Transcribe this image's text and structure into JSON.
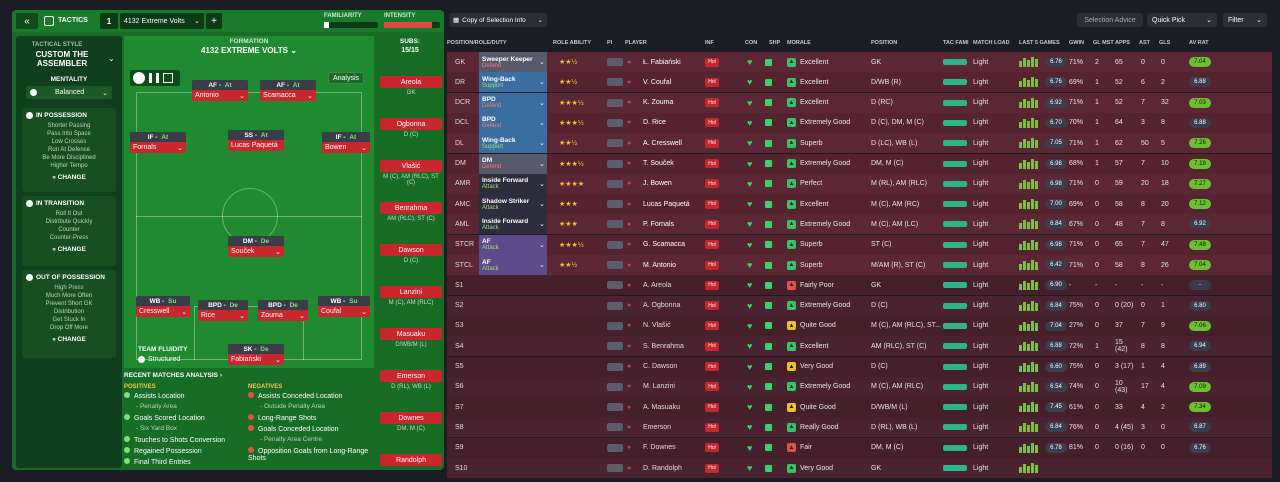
{
  "left": {
    "topbar": {
      "section": "TACTICS",
      "slot": "1",
      "tactic": "4132 Extreme Volts",
      "familiarity": "FAMILIARITY",
      "intensity": "INTENSITY"
    },
    "style": {
      "label": "TACTICAL STYLE",
      "name": "CUSTOM THE ASSEMBLER",
      "mentality_label": "MENTALITY",
      "mentality": "Balanced"
    },
    "sections": [
      {
        "title": "IN POSSESSION",
        "lines": [
          "Shorter Passing",
          "Pass Into Space",
          "Low Crosses",
          "Run At Defence",
          "Be More Disciplined",
          "Higher Tempo"
        ],
        "change": "CHANGE"
      },
      {
        "title": "IN TRANSITION",
        "lines": [
          "Roll It Out",
          "Distribute Quickly",
          "Counter",
          "Counter-Press"
        ],
        "change": "CHANGE"
      },
      {
        "title": "OUT OF POSSESSION",
        "lines": [
          "High Press",
          "Much More Often",
          "Prevent Short GK",
          "Distribution",
          "Get Stuck In",
          "Drop Off More"
        ],
        "change": "CHANGE"
      }
    ],
    "formation": {
      "label": "FORMATION",
      "name": "4132 EXTREME VOLTS",
      "analysis": "Analysis",
      "fluidity_label": "TEAM FLUIDITY",
      "fluidity": "Structured"
    },
    "players": [
      {
        "role": "AF",
        "duty": "At",
        "name": "Antonio"
      },
      {
        "role": "AF",
        "duty": "At",
        "name": "Scamacca"
      },
      {
        "role": "IF",
        "duty": "At",
        "name": "Fornals"
      },
      {
        "role": "SS",
        "duty": "At",
        "name": "Lucas Paquetá"
      },
      {
        "role": "IF",
        "duty": "At",
        "name": "Bowen"
      },
      {
        "role": "DM",
        "duty": "De",
        "name": "Souček"
      },
      {
        "role": "WB",
        "duty": "Su",
        "name": "Cresswell"
      },
      {
        "role": "BPD",
        "duty": "De",
        "name": "Rice"
      },
      {
        "role": "BPD",
        "duty": "De",
        "name": "Zouma"
      },
      {
        "role": "WB",
        "duty": "Su",
        "name": "Coufal"
      },
      {
        "role": "SK",
        "duty": "De",
        "name": "Fabiański"
      }
    ],
    "subs": {
      "label": "SUBS:",
      "count": "15/15",
      "list": [
        {
          "name": "Areola",
          "pos": "GK"
        },
        {
          "name": "Ogbonna",
          "pos": "D (C)"
        },
        {
          "name": "Vlašić",
          "pos": "M (C), AM (RLC), ST (C)"
        },
        {
          "name": "Benrahma",
          "pos": "AM (RLC), ST (C)"
        },
        {
          "name": "Dawson",
          "pos": "D (C)"
        },
        {
          "name": "Lanzini",
          "pos": "M (C), AM (RLC)"
        },
        {
          "name": "Masuaku",
          "pos": "D/WB/M (L)"
        },
        {
          "name": "Emerson",
          "pos": "D (RL), WB (L)"
        },
        {
          "name": "Downes",
          "pos": "DM, M (C)"
        },
        {
          "name": "Randolph",
          "pos": ""
        }
      ]
    },
    "analysis": {
      "title": "RECENT MATCHES ANALYSIS",
      "pos_label": "POSITIVES",
      "neg_label": "NEGATIVES",
      "positives": [
        {
          "t": "Assists Location",
          "s": "- Penalty Area"
        },
        {
          "t": "Goals Scored Location",
          "s": "- Six Yard Box"
        },
        {
          "t": "Touches to Shots Conversion",
          "s": ""
        },
        {
          "t": "Regained Possession",
          "s": ""
        },
        {
          "t": "Final Third Entries",
          "s": ""
        }
      ],
      "negatives": [
        {
          "t": "Assists Conceded Location",
          "s": "- Outside Penalty Area"
        },
        {
          "t": "Long-Range Shots",
          "s": ""
        },
        {
          "t": "Goals Conceded Location",
          "s": "- Penalty Area Centre"
        },
        {
          "t": "Opposition Goals from Long-Range Shots",
          "s": ""
        }
      ]
    }
  },
  "right": {
    "view": "Copy of Selection Info",
    "buttons": {
      "advice": "Selection Advice",
      "quick": "Quick Pick",
      "filter": "Filter"
    },
    "headers": [
      "POSITION/ROLE/DUTY",
      "ROLE ABILITY",
      "PI",
      "PLAYER",
      "INF",
      "CON",
      "SHP",
      "MORALE",
      "POSITION",
      "TAC FAMI",
      "MATCH LOAD",
      "LAST 5 GAMES",
      "GWIN",
      "GL MST",
      "APPS",
      "AST",
      "GLS",
      "AV RAT"
    ],
    "rows": [
      {
        "pos": "GK",
        "role": "Sweeper Keeper",
        "duty": "Defend",
        "stars": "★★½",
        "player": "Ł. Fabiański",
        "morale": "Excellent",
        "mc": "#35c46a",
        "position": "GK",
        "load": "Light",
        "l5": "6.76",
        "gwin": "71%",
        "glm": "2",
        "apps": "65",
        "ast": "0",
        "gls": "0",
        "av": "7.04",
        "g": true
      },
      {
        "pos": "DR",
        "role": "Wing-Back",
        "duty": "Support",
        "stars": "★★½",
        "player": "V. Coufal",
        "morale": "Excellent",
        "mc": "#35c46a",
        "position": "D/WB (R)",
        "load": "Light",
        "l5": "6.76",
        "gwin": "69%",
        "glm": "1",
        "apps": "52",
        "ast": "6",
        "gls": "2",
        "av": "6.88",
        "g": false
      },
      {
        "pos": "DCR",
        "role": "BPD",
        "duty": "Defend",
        "stars": "★★★½",
        "player": "K. Zouma",
        "morale": "Excellent",
        "mc": "#35c46a",
        "position": "D (RC)",
        "load": "Light",
        "l5": "6.92",
        "gwin": "71%",
        "glm": "1",
        "apps": "52",
        "ast": "7",
        "gls": "32",
        "av": "7.03",
        "g": true
      },
      {
        "pos": "DCL",
        "role": "BPD",
        "duty": "Defend",
        "stars": "★★★½",
        "player": "D. Rice",
        "morale": "Extremely Good",
        "mc": "#35c46a",
        "position": "D (C), DM, M (C)",
        "load": "Light",
        "l5": "6.70",
        "gwin": "70%",
        "glm": "1",
        "apps": "64",
        "ast": "3",
        "gls": "8",
        "av": "6.88",
        "g": false
      },
      {
        "pos": "DL",
        "role": "Wing-Back",
        "duty": "Support",
        "stars": "★★½",
        "player": "A. Cresswell",
        "morale": "Superb",
        "mc": "#35c46a",
        "position": "D (LC), WB (L)",
        "load": "Light",
        "l5": "7.05",
        "gwin": "71%",
        "glm": "1",
        "apps": "62",
        "ast": "50",
        "gls": "5",
        "av": "7.26",
        "g": true
      },
      {
        "pos": "DM",
        "role": "DM",
        "duty": "Defend",
        "stars": "★★★½",
        "player": "T. Souček",
        "morale": "Extremely Good",
        "mc": "#35c46a",
        "position": "DM, M (C)",
        "load": "Light",
        "l5": "6.98",
        "gwin": "68%",
        "glm": "1",
        "apps": "57",
        "ast": "7",
        "gls": "10",
        "av": "7.19",
        "g": true
      },
      {
        "pos": "AMR",
        "role": "Inside Forward",
        "duty": "Attack",
        "stars": "★★★★",
        "player": "J. Bowen",
        "morale": "Perfect",
        "mc": "#35c46a",
        "position": "M (RL), AM (RLC)",
        "load": "Light",
        "l5": "6.98",
        "gwin": "71%",
        "glm": "0",
        "apps": "59",
        "ast": "20",
        "gls": "18",
        "av": "7.27",
        "g": true
      },
      {
        "pos": "AMC",
        "role": "Shadow Striker",
        "duty": "Attack",
        "stars": "★★★",
        "player": "Lucas Paquetá",
        "morale": "Excellent",
        "mc": "#35c46a",
        "position": "M (C), AM (RC)",
        "load": "Light",
        "l5": "7.00",
        "gwin": "69%",
        "glm": "0",
        "apps": "58",
        "ast": "8",
        "gls": "20",
        "av": "7.12",
        "g": true
      },
      {
        "pos": "AML",
        "role": "Inside Forward",
        "duty": "Attack",
        "stars": "★★★",
        "player": "P. Fornals",
        "morale": "Extremely Good",
        "mc": "#35c46a",
        "position": "M (C), AM (LC)",
        "load": "Light",
        "l5": "6.84",
        "gwin": "67%",
        "glm": "0",
        "apps": "48",
        "ast": "7",
        "gls": "8",
        "av": "6.92",
        "g": false
      },
      {
        "pos": "STCR",
        "role": "AF",
        "duty": "Attack",
        "stars": "★★★½",
        "player": "G. Scamacca",
        "morale": "Superb",
        "mc": "#35c46a",
        "position": "ST (C)",
        "load": "Light",
        "l5": "6.98",
        "gwin": "71%",
        "glm": "0",
        "apps": "65",
        "ast": "7",
        "gls": "47",
        "av": "7.48",
        "g": true
      },
      {
        "pos": "STCL",
        "role": "AF",
        "duty": "Attack",
        "stars": "★★½",
        "player": "M. Antonio",
        "morale": "Superb",
        "mc": "#35c46a",
        "position": "M/AM (R), ST (C)",
        "load": "Light",
        "l5": "6.42",
        "gwin": "71%",
        "glm": "0",
        "apps": "58",
        "ast": "8",
        "gls": "26",
        "av": "7.04",
        "g": true
      },
      {
        "pos": "S1",
        "role": "",
        "duty": "",
        "stars": "",
        "player": "A. Areola",
        "morale": "Fairly Poor",
        "mc": "#e0524a",
        "position": "GK",
        "load": "Light",
        "l5": "6.90",
        "gwin": "-",
        "glm": "-",
        "apps": "-",
        "ast": "-",
        "gls": "-",
        "av": "-",
        "g": false
      },
      {
        "pos": "S2",
        "role": "",
        "duty": "",
        "stars": "",
        "player": "A. Ogbonna",
        "morale": "Extremely Good",
        "mc": "#35c46a",
        "position": "D (C)",
        "load": "Light",
        "l5": "6.84",
        "gwin": "75%",
        "glm": "0",
        "apps": "0 (20)",
        "ast": "0",
        "gls": "1",
        "av": "6.80",
        "g": false
      },
      {
        "pos": "S3",
        "role": "",
        "duty": "",
        "stars": "",
        "player": "N. Vlašić",
        "morale": "Quite Good",
        "mc": "#e6c230",
        "position": "M (C), AM (RLC), ST...",
        "load": "Light",
        "l5": "7.04",
        "gwin": "27%",
        "glm": "0",
        "apps": "37",
        "ast": "7",
        "gls": "9",
        "av": "7.06",
        "g": true
      },
      {
        "pos": "S4",
        "role": "",
        "duty": "",
        "stars": "",
        "player": "S. Benrahma",
        "morale": "Excellent",
        "mc": "#35c46a",
        "position": "AM (RLC), ST (C)",
        "load": "Light",
        "l5": "6.88",
        "gwin": "72%",
        "glm": "1",
        "apps": "15 (42)",
        "ast": "8",
        "gls": "8",
        "av": "6.94",
        "g": false
      },
      {
        "pos": "S5",
        "role": "",
        "duty": "",
        "stars": "",
        "player": "C. Dawson",
        "morale": "Very Good",
        "mc": "#e6c230",
        "position": "D (C)",
        "load": "Light",
        "l5": "6.60",
        "gwin": "75%",
        "glm": "0",
        "apps": "3 (17)",
        "ast": "1",
        "gls": "4",
        "av": "6.89",
        "g": false
      },
      {
        "pos": "S6",
        "role": "",
        "duty": "",
        "stars": "",
        "player": "M. Lanzini",
        "morale": "Extremely Good",
        "mc": "#35c46a",
        "position": "M (C), AM (RLC)",
        "load": "Light",
        "l5": "6.54",
        "gwin": "74%",
        "glm": "0",
        "apps": "10 (43)",
        "ast": "17",
        "gls": "4",
        "av": "7.09",
        "g": true
      },
      {
        "pos": "S7",
        "role": "",
        "duty": "",
        "stars": "",
        "player": "A. Masuaku",
        "morale": "Quite Good",
        "mc": "#e6c230",
        "position": "D/WB/M (L)",
        "load": "Light",
        "l5": "7.45",
        "gwin": "61%",
        "glm": "0",
        "apps": "33",
        "ast": "4",
        "gls": "2",
        "av": "7.34",
        "g": true
      },
      {
        "pos": "S8",
        "role": "",
        "duty": "",
        "stars": "",
        "player": "Emerson",
        "morale": "Really Good",
        "mc": "#35c46a",
        "position": "D (RL), WB (L)",
        "load": "Light",
        "l5": "6.84",
        "gwin": "76%",
        "glm": "0",
        "apps": "4 (45)",
        "ast": "3",
        "gls": "0",
        "av": "6.87",
        "g": false
      },
      {
        "pos": "S9",
        "role": "",
        "duty": "",
        "stars": "",
        "player": "F. Downes",
        "morale": "Fair",
        "mc": "#e0524a",
        "position": "DM, M (C)",
        "load": "Light",
        "l5": "6.78",
        "gwin": "81%",
        "glm": "0",
        "apps": "0 (16)",
        "ast": "0",
        "gls": "0",
        "av": "6.76",
        "g": false
      },
      {
        "pos": "S10",
        "role": "",
        "duty": "",
        "stars": "",
        "player": "D. Randolph",
        "morale": "Very Good",
        "mc": "#35c46a",
        "position": "GK",
        "load": "Light",
        "l5": "",
        "gwin": "",
        "glm": "",
        "apps": "",
        "ast": "",
        "gls": "",
        "av": "",
        "g": false
      }
    ]
  },
  "colors": {
    "accent": "#1f7a2e",
    "attack": "#c9262d",
    "defend": "#c5262b",
    "starter_bg": "#5b2735",
    "sub_bg": "#4a2230"
  }
}
